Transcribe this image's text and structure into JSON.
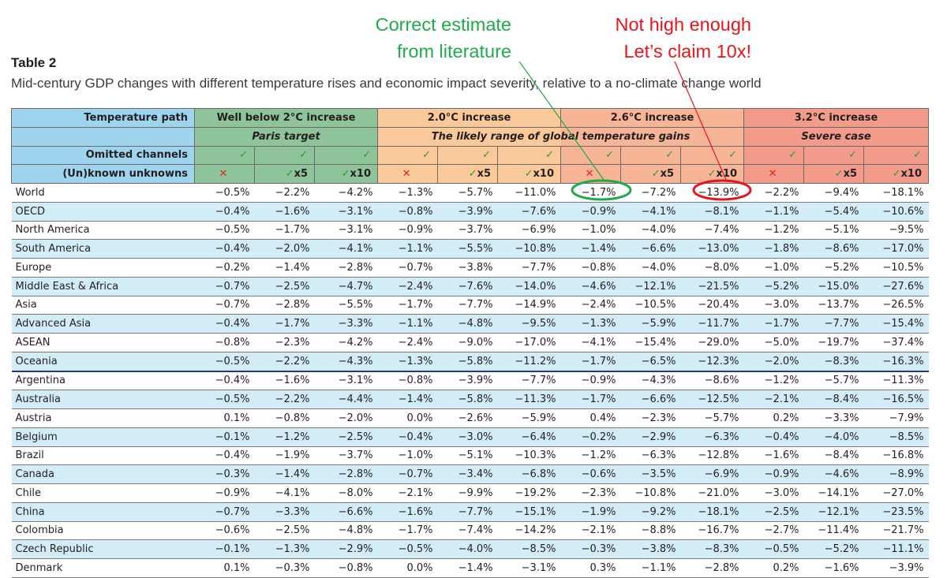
{
  "annotations": {
    "green_line1": "Correct estimate",
    "green_line2": "from literature",
    "red_line1": "Not high enough",
    "red_line2": "Let’s claim 10x!"
  },
  "table_label": "Table 2",
  "caption": "Mid-century GDP changes with different temperature rises and economic impact severity, relative to a no-climate change world",
  "header": {
    "temperature_path_label": "Temperature path",
    "omitted_label": "Omitted channels",
    "unknowns_label": "(Un)known unknowns",
    "check": "✓",
    "cross": "✕",
    "x5": "x5",
    "x10": "x10",
    "groups": [
      {
        "title": "Well below 2°C increase",
        "subtitle": "Paris target"
      },
      {
        "title": "2.0°C increase",
        "subtitle": "The likely range of global temperature gains"
      },
      {
        "title": "2.6°C increase",
        "subtitle": "The likely range of global temperature gains"
      },
      {
        "title": "3.2°C increase",
        "subtitle": "Severe case"
      }
    ]
  },
  "rows": [
    {
      "region": "World",
      "values": [
        "−0.5%",
        "−2.2%",
        "−4.2%",
        "−1.3%",
        "−5.7%",
        "−11.0%",
        "−1.7%",
        "−7.2%",
        "−13.9%",
        "−2.2%",
        "−9.4%",
        "−18.1%"
      ]
    },
    {
      "region": "OECD",
      "values": [
        "−0.4%",
        "−1.6%",
        "−3.1%",
        "−0.8%",
        "−3.9%",
        "−7.6%",
        "−0.9%",
        "−4.1%",
        "−8.1%",
        "−1.1%",
        "−5.4%",
        "−10.6%"
      ]
    },
    {
      "region": "North America",
      "values": [
        "−0.5%",
        "−1.7%",
        "−3.1%",
        "−0.9%",
        "−3.7%",
        "−6.9%",
        "−1.0%",
        "−4.0%",
        "−7.4%",
        "−1.2%",
        "−5.1%",
        "−9.5%"
      ]
    },
    {
      "region": "South America",
      "values": [
        "−0.4%",
        "−2.0%",
        "−4.1%",
        "−1.1%",
        "−5.5%",
        "−10.8%",
        "−1.4%",
        "−6.6%",
        "−13.0%",
        "−1.8%",
        "−8.6%",
        "−17.0%"
      ]
    },
    {
      "region": "Europe",
      "values": [
        "−0.2%",
        "−1.4%",
        "−2.8%",
        "−0.7%",
        "−3.8%",
        "−7.7%",
        "−0.8%",
        "−4.0%",
        "−8.0%",
        "−1.0%",
        "−5.2%",
        "−10.5%"
      ]
    },
    {
      "region": "Middle East & Africa",
      "values": [
        "−0.7%",
        "−2.5%",
        "−4.7%",
        "−2.4%",
        "−7.6%",
        "−14.0%",
        "−4.6%",
        "−12.1%",
        "−21.5%",
        "−5.2%",
        "−15.0%",
        "−27.6%"
      ]
    },
    {
      "region": "Asia",
      "values": [
        "−0.7%",
        "−2.8%",
        "−5.5%",
        "−1.7%",
        "−7.7%",
        "−14.9%",
        "−2.4%",
        "−10.5%",
        "−20.4%",
        "−3.0%",
        "−13.7%",
        "−26.5%"
      ]
    },
    {
      "region": "Advanced Asia",
      "values": [
        "−0.4%",
        "−1.7%",
        "−3.3%",
        "−1.1%",
        "−4.8%",
        "−9.5%",
        "−1.3%",
        "−5.9%",
        "−11.7%",
        "−1.7%",
        "−7.7%",
        "−15.4%"
      ]
    },
    {
      "region": "ASEAN",
      "values": [
        "−0.8%",
        "−2.3%",
        "−4.2%",
        "−2.4%",
        "−9.0%",
        "−17.0%",
        "−4.1%",
        "−15.4%",
        "−29.0%",
        "−5.0%",
        "−19.7%",
        "−37.4%"
      ]
    },
    {
      "region": "Oceania",
      "values": [
        "−0.5%",
        "−2.2%",
        "−4.3%",
        "−1.3%",
        "−5.8%",
        "−11.2%",
        "−1.7%",
        "−6.5%",
        "−12.3%",
        "−2.0%",
        "−8.3%",
        "−16.3%"
      ]
    },
    {
      "region": "Argentina",
      "values": [
        "−0.4%",
        "−1.6%",
        "−3.1%",
        "−0.8%",
        "−3.9%",
        "−7.7%",
        "−0.9%",
        "−4.3%",
        "−8.6%",
        "−1.2%",
        "−5.7%",
        "−11.3%"
      ]
    },
    {
      "region": "Australia",
      "values": [
        "−0.5%",
        "−2.2%",
        "−4.4%",
        "−1.4%",
        "−5.8%",
        "−11.3%",
        "−1.7%",
        "−6.6%",
        "−12.5%",
        "−2.1%",
        "−8.4%",
        "−16.5%"
      ]
    },
    {
      "region": "Austria",
      "values": [
        "0.1%",
        "−0.8%",
        "−2.0%",
        "0.0%",
        "−2.6%",
        "−5.9%",
        "0.4%",
        "−2.3%",
        "−5.7%",
        "0.2%",
        "−3.3%",
        "−7.9%"
      ]
    },
    {
      "region": "Belgium",
      "values": [
        "−0.1%",
        "−1.2%",
        "−2.5%",
        "−0.4%",
        "−3.0%",
        "−6.4%",
        "−0.2%",
        "−2.9%",
        "−6.3%",
        "−0.4%",
        "−4.0%",
        "−8.5%"
      ]
    },
    {
      "region": "Brazil",
      "values": [
        "−0.4%",
        "−1.9%",
        "−3.7%",
        "−1.0%",
        "−5.1%",
        "−10.3%",
        "−1.2%",
        "−6.3%",
        "−12.8%",
        "−1.6%",
        "−8.4%",
        "−16.8%"
      ]
    },
    {
      "region": "Canada",
      "values": [
        "−0.3%",
        "−1.4%",
        "−2.8%",
        "−0.7%",
        "−3.4%",
        "−6.8%",
        "−0.6%",
        "−3.5%",
        "−6.9%",
        "−0.9%",
        "−4.6%",
        "−8.9%"
      ]
    },
    {
      "region": "Chile",
      "values": [
        "−0.9%",
        "−4.1%",
        "−8.0%",
        "−2.1%",
        "−9.9%",
        "−19.2%",
        "−2.3%",
        "−10.8%",
        "−21.0%",
        "−3.0%",
        "−14.1%",
        "−27.0%"
      ]
    },
    {
      "region": "China",
      "values": [
        "−0.7%",
        "−3.3%",
        "−6.6%",
        "−1.6%",
        "−7.7%",
        "−15.1%",
        "−1.9%",
        "−9.2%",
        "−18.1%",
        "−2.5%",
        "−12.1%",
        "−23.5%"
      ]
    },
    {
      "region": "Colombia",
      "values": [
        "−0.6%",
        "−2.5%",
        "−4.8%",
        "−1.7%",
        "−7.4%",
        "−14.2%",
        "−2.1%",
        "−8.8%",
        "−16.7%",
        "−2.7%",
        "−11.4%",
        "−21.7%"
      ]
    },
    {
      "region": "Czech Republic",
      "values": [
        "−0.1%",
        "−1.3%",
        "−2.9%",
        "−0.5%",
        "−4.0%",
        "−8.5%",
        "−0.3%",
        "−3.8%",
        "−8.3%",
        "−0.5%",
        "−5.2%",
        "−11.1%"
      ]
    },
    {
      "region": "Denmark",
      "values": [
        "0.1%",
        "−0.3%",
        "−0.8%",
        "0.0%",
        "−1.4%",
        "−3.1%",
        "0.3%",
        "−1.1%",
        "−2.8%",
        "0.2%",
        "−1.6%",
        "−3.9%"
      ]
    }
  ],
  "colors": {
    "green": "#1faa4b",
    "red": "#e8141c",
    "header_blue": "#9fd4ef",
    "row_blue": "#d3edf8"
  }
}
